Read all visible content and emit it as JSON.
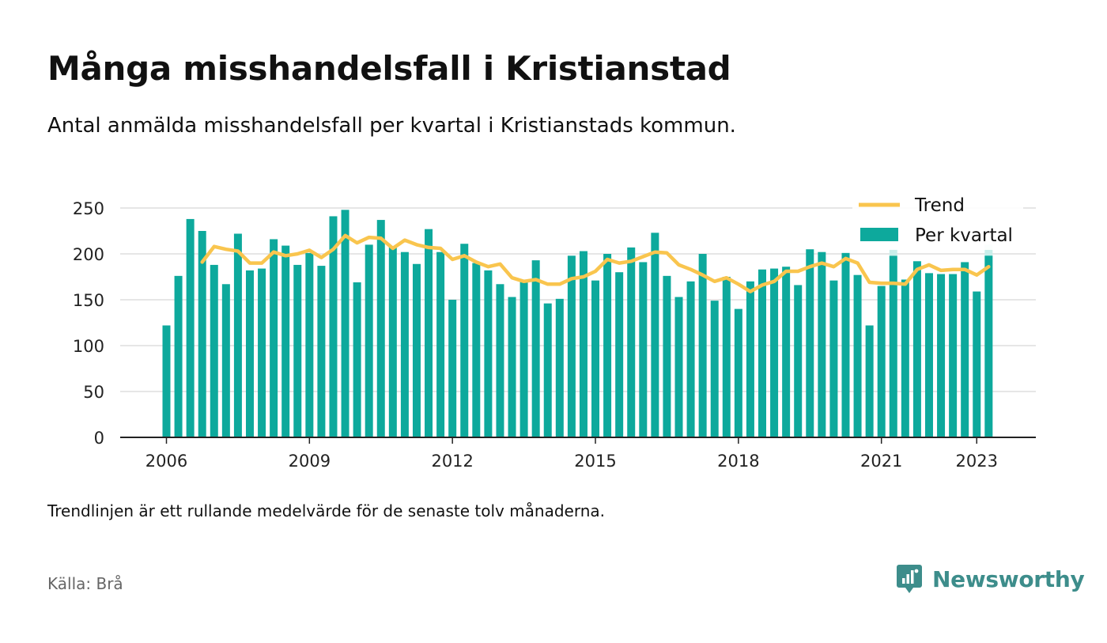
{
  "title": "Många misshandelsfall i Kristianstad",
  "subtitle": "Antal anmälda misshandelsfall per kvartal i Kristianstads kommun.",
  "note": "Trendlinjen är ett rullande medelvärde för de senaste tolv månaderna.",
  "source": "Källa: Brå",
  "brand": {
    "name": "Newsworthy",
    "icon": "newsworthy-logo-icon",
    "color": "#3d8d8b"
  },
  "colors": {
    "bar": "#0da99c",
    "trend": "#f9c54e",
    "last_bar_ghost": "#c9eeea",
    "grid": "#dddddd",
    "axis": "#222222"
  },
  "chart_data": {
    "type": "bar",
    "y_ticks": [
      0,
      50,
      100,
      150,
      200,
      250
    ],
    "x_tick_labels": [
      "2006",
      "2009",
      "2012",
      "2015",
      "2018",
      "2021",
      "2023"
    ],
    "ylim": [
      0,
      260
    ],
    "legend": [
      "Trend",
      "Per kvartal"
    ],
    "legend_position": "top-right",
    "grid": true,
    "series": [
      {
        "name": "Per kvartal",
        "type": "bar",
        "values": [
          122,
          176,
          238,
          225,
          188,
          167,
          222,
          182,
          184,
          216,
          209,
          188,
          201,
          187,
          241,
          248,
          169,
          210,
          237,
          208,
          202,
          189,
          227,
          202,
          150,
          211,
          190,
          182,
          167,
          153,
          172,
          193,
          146,
          151,
          198,
          203,
          171,
          200,
          180,
          207,
          191,
          223,
          176,
          153,
          170,
          200,
          149,
          175,
          140,
          170,
          183,
          184,
          186,
          166,
          205,
          202,
          171,
          201,
          177,
          122,
          165,
          198,
          172,
          192,
          179,
          178,
          178,
          191,
          159,
          198
        ]
      },
      {
        "name": "Trend",
        "type": "line",
        "values": [
          null,
          null,
          null,
          191,
          208,
          205,
          203,
          190,
          190,
          202,
          198,
          200,
          204,
          196,
          205,
          220,
          212,
          218,
          217,
          206,
          215,
          210,
          207,
          206,
          194,
          198,
          191,
          186,
          189,
          174,
          170,
          172,
          167,
          167,
          173,
          175,
          181,
          194,
          190,
          192,
          197,
          202,
          201,
          188,
          183,
          177,
          170,
          174,
          167,
          159,
          166,
          170,
          181,
          181,
          186,
          190,
          186,
          195,
          190,
          169,
          168,
          168,
          167,
          183,
          188,
          182,
          183,
          183,
          177,
          186
        ]
      }
    ]
  }
}
